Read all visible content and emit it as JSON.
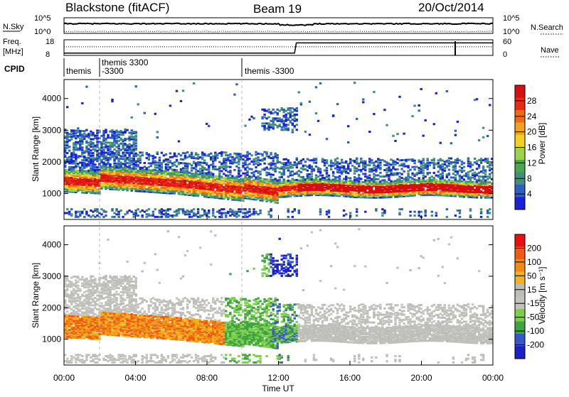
{
  "header": {
    "station": "Blackstone (fitACF)",
    "beam": "Beam 19",
    "date": "20/Oct/2014"
  },
  "strip_labels": {
    "nsky": "N.Sky",
    "nsearch": "N.Search",
    "freq_line1": "Freq.",
    "freq_line2": "[MHz]",
    "nave": "Nave",
    "cpid": "CPID",
    "nsky_top": "10^5",
    "nsky_bot": "10^0",
    "nsearch_top": "10^5",
    "nsearch_bot": "10^0",
    "freq_top": "18",
    "freq_bot": "8",
    "nave_top": "60",
    "nave_bot": "0"
  },
  "cpid_labels": [
    {
      "text": "themis",
      "row": 2
    },
    {
      "text": "themis 3300",
      "row": 1
    },
    {
      "text": "-3300",
      "row": 2
    },
    {
      "text": "themis -3300",
      "row": 2
    }
  ],
  "colors": {
    "power": [
      "#1a22d8",
      "#2a5fc4",
      "#3f8f7a",
      "#4aa84a",
      "#9bd34a",
      "#f2d21e",
      "#f2a21e",
      "#f06a12",
      "#e82a14",
      "#d80f10"
    ],
    "velocity": [
      "#1b21c9",
      "#3657c8",
      "#3fa33f",
      "#7ccf4a",
      "#c3c3be",
      "#bdbdb8",
      "#f2b21e",
      "#f08a12",
      "#f05a12",
      "#e81010"
    ]
  },
  "chart_data": [
    {
      "type": "heatmap",
      "name": "power",
      "xlabel": "",
      "ylabel": "Slant Range [km]",
      "x_range_hours": [
        0,
        24
      ],
      "ylim": [
        180,
        4600
      ],
      "yticks": [
        1000,
        2000,
        3000,
        4000
      ],
      "colorbar": {
        "label": "Power [dB]",
        "ticks": [
          "4",
          "8",
          "12",
          "16",
          "20",
          "24",
          "28"
        ],
        "range": [
          0,
          31
        ]
      }
    },
    {
      "type": "heatmap",
      "name": "velocity",
      "xlabel": "Time UT",
      "ylabel": "Slant Range [km]",
      "x_range_hours": [
        0,
        24
      ],
      "xticks": [
        "00:00",
        "04:00",
        "08:00",
        "12:00",
        "16:00",
        "20:00",
        "00:00"
      ],
      "ylim": [
        180,
        4600
      ],
      "yticks": [
        1000,
        2000,
        3000,
        4000
      ],
      "colorbar": {
        "label": "Velocity [m s⁻¹]",
        "ticks": [
          "200",
          "100",
          "50",
          "15",
          "-15",
          "-50",
          "-100",
          "-200"
        ]
      }
    }
  ]
}
